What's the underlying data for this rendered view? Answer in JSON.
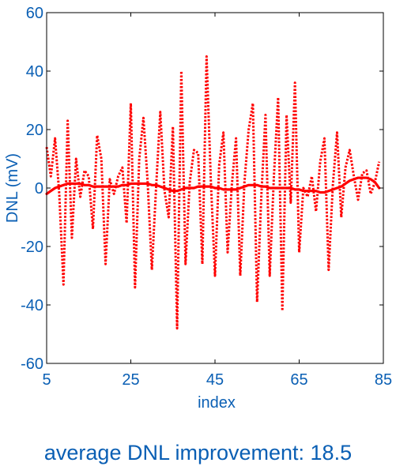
{
  "caption": "average DNL improvement: 18.5",
  "colors": {
    "axis_text": "#0a5fb4",
    "axis_line": "#000000",
    "series": "#ff0000"
  },
  "chart_data": {
    "type": "line",
    "xlabel": "index",
    "ylabel": "DNL (mV)",
    "xlim": [
      5,
      85
    ],
    "ylim": [
      -60,
      60
    ],
    "xticks": [
      5,
      25,
      45,
      65,
      85
    ],
    "yticks": [
      -60,
      -40,
      -20,
      0,
      20,
      40,
      60
    ],
    "grid": false,
    "x_start": 5,
    "x_end": 84,
    "series": [
      {
        "style": "dotted",
        "values": [
          14,
          4,
          17,
          -2,
          -33,
          23,
          -17,
          10,
          -3,
          6,
          4,
          -14,
          18,
          10,
          -26,
          3,
          -2,
          4,
          7,
          -12,
          29,
          -34,
          10,
          24,
          2,
          -28,
          0,
          26,
          -1,
          -10,
          21,
          -48,
          40,
          -26,
          2,
          13,
          12,
          -26,
          45,
          3,
          -30,
          8,
          19,
          -22,
          1,
          17,
          -30,
          2,
          20,
          29,
          -39,
          -3,
          25,
          -30,
          4,
          31,
          -42,
          25,
          -5,
          36,
          -22,
          0,
          -3,
          4,
          -8,
          9,
          17,
          -28,
          1,
          19,
          -10,
          7,
          13,
          4,
          -4,
          5,
          6,
          -2,
          2,
          9
        ]
      },
      {
        "style": "solid",
        "values": [
          -2,
          -1,
          0,
          0.5,
          1,
          1.5,
          1.5,
          1.5,
          1.5,
          1,
          1,
          0.5,
          0.5,
          0.5,
          0.5,
          0.5,
          0.5,
          0.5,
          1,
          1,
          1.5,
          1.5,
          1.5,
          1.5,
          1.5,
          1,
          1,
          0.5,
          0,
          -0.5,
          -1,
          -1,
          -0.5,
          0,
          0,
          0,
          0.5,
          0.5,
          0.5,
          0.5,
          0,
          0,
          -0.5,
          -0.5,
          -0.5,
          -0.5,
          0,
          0.5,
          1,
          1,
          1,
          0.5,
          0.5,
          0,
          0,
          0,
          0,
          0,
          0,
          -0.5,
          -0.5,
          -1,
          -1,
          -1,
          -1,
          -1.5,
          -1.5,
          -1,
          -0.5,
          0,
          0.5,
          1.5,
          2.5,
          3,
          3.5,
          3.5,
          3.5,
          3,
          2,
          0
        ]
      }
    ]
  }
}
